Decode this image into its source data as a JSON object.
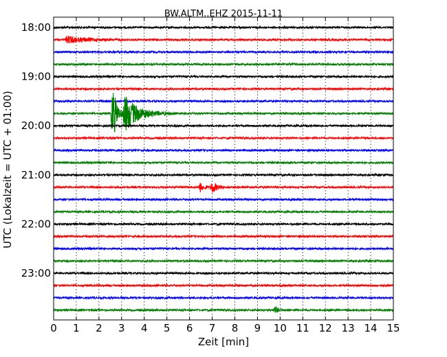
{
  "chart_data": {
    "type": "line",
    "title": "BW.ALTM..EHZ 2015-11-11",
    "xlabel": "Zeit  [min]",
    "ylabel": "UTC (Lokalzeit = UTC + 01:00)",
    "xlim": [
      0,
      15
    ],
    "x_ticks": [
      "0",
      "1",
      "2",
      "3",
      "4",
      "5",
      "6",
      "7",
      "8",
      "9",
      "10",
      "11",
      "12",
      "13",
      "14",
      "15"
    ],
    "y_tick_labels": [
      "18:00",
      "19:00",
      "20:00",
      "21:00",
      "22:00",
      "23:00"
    ],
    "grid": "vertical dotted",
    "trace_colors": [
      "#000000",
      "#ff0000",
      "#0000ff",
      "#007f00"
    ],
    "traces": [
      {
        "start": "18:00",
        "color": "#000000",
        "events": []
      },
      {
        "start": "18:15",
        "color": "#ff0000",
        "events": [
          {
            "t": 0.5,
            "amp": 5,
            "dur": 2.6
          }
        ]
      },
      {
        "start": "18:30",
        "color": "#0000ff",
        "events": []
      },
      {
        "start": "18:45",
        "color": "#007f00",
        "events": []
      },
      {
        "start": "19:00",
        "color": "#000000",
        "events": []
      },
      {
        "start": "19:15",
        "color": "#ff0000",
        "events": []
      },
      {
        "start": "19:30",
        "color": "#0000ff",
        "events": []
      },
      {
        "start": "19:45",
        "color": "#007f00",
        "events": [
          {
            "t": 2.52,
            "amp": 44,
            "dur": 0.55
          },
          {
            "t": 3.05,
            "amp": 26,
            "dur": 1.9
          }
        ]
      },
      {
        "start": "20:00",
        "color": "#000000",
        "events": []
      },
      {
        "start": "20:15",
        "color": "#ff0000",
        "events": []
      },
      {
        "start": "20:30",
        "color": "#0000ff",
        "events": []
      },
      {
        "start": "20:45",
        "color": "#007f00",
        "events": []
      },
      {
        "start": "21:00",
        "color": "#000000",
        "events": []
      },
      {
        "start": "21:15",
        "color": "#ff0000",
        "events": [
          {
            "t": 6.4,
            "amp": 7,
            "dur": 0.5
          },
          {
            "t": 6.9,
            "amp": 8,
            "dur": 0.8
          }
        ]
      },
      {
        "start": "21:30",
        "color": "#0000ff",
        "events": []
      },
      {
        "start": "21:45",
        "color": "#007f00",
        "events": []
      },
      {
        "start": "22:00",
        "color": "#000000",
        "events": []
      },
      {
        "start": "22:15",
        "color": "#ff0000",
        "events": []
      },
      {
        "start": "22:30",
        "color": "#0000ff",
        "events": []
      },
      {
        "start": "22:45",
        "color": "#007f00",
        "events": []
      },
      {
        "start": "23:00",
        "color": "#000000",
        "events": []
      },
      {
        "start": "23:15",
        "color": "#ff0000",
        "events": []
      },
      {
        "start": "23:30",
        "color": "#0000ff",
        "events": []
      },
      {
        "start": "23:45",
        "color": "#007f00",
        "events": [
          {
            "t": 9.7,
            "amp": 6,
            "dur": 0.4
          }
        ]
      }
    ]
  }
}
